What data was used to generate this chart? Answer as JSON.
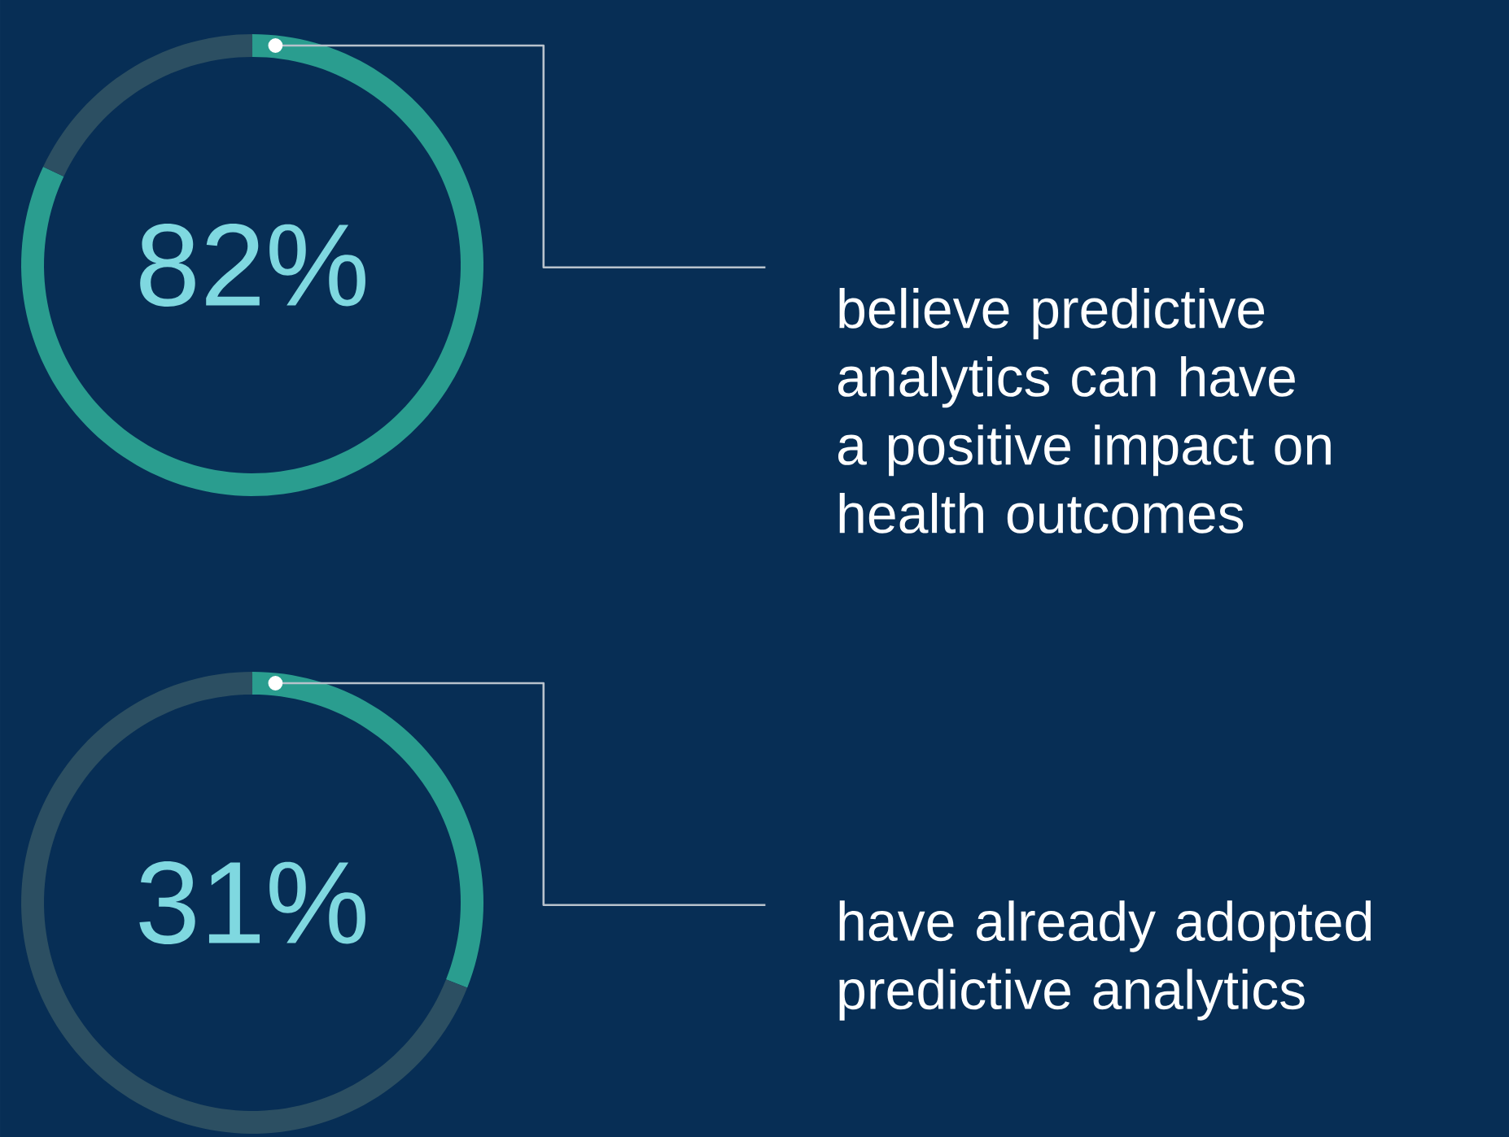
{
  "chart_data": [
    {
      "type": "donut",
      "categories": [
        null,
        null
      ],
      "values": [
        82,
        18
      ],
      "colors": [
        "#2a9d8f",
        "#2c4f62"
      ],
      "value_labels": [
        "82%",
        null
      ],
      "annotations": [
        "believe predictive analytics can have a positive impact on health outcomes"
      ]
    },
    {
      "type": "donut",
      "categories": [
        null,
        null
      ],
      "values": [
        31,
        69
      ],
      "colors": [
        "#2a9d8f",
        "#2c4f62"
      ],
      "value_labels": [
        "31%",
        null
      ],
      "annotations": [
        "have already adopted predictive analytics"
      ]
    }
  ]
}
